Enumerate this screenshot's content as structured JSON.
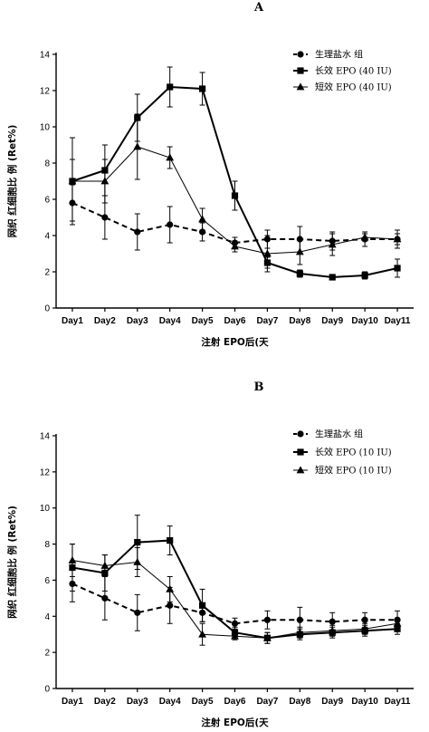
{
  "chart_data": [
    {
      "panel": "A",
      "type": "line",
      "title": "A",
      "xlabel": "注射 EPO后(天",
      "ylabel": "网织 红细胞比 例 (Ret%)",
      "categories": [
        "Day1",
        "Day2",
        "Day3",
        "Day4",
        "Day5",
        "Day6",
        "Day7",
        "Day8",
        "Day9",
        "Day10",
        "Day11"
      ],
      "ylim": [
        0,
        14
      ],
      "yticks": [
        0,
        2,
        4,
        6,
        8,
        10,
        12,
        14
      ],
      "grid": false,
      "legend_position": "top-right",
      "series": [
        {
          "name": "生理盐水 组",
          "marker": "circle",
          "line": "dashed",
          "stroke_width": 2,
          "values": [
            5.8,
            5.0,
            4.2,
            4.6,
            4.2,
            3.6,
            3.8,
            3.8,
            3.7,
            3.8,
            3.8
          ],
          "errors": [
            1.0,
            1.2,
            1.0,
            1.0,
            0.5,
            0.3,
            0.5,
            0.7,
            0.5,
            0.4,
            0.5
          ]
        },
        {
          "name": "长效 EPO (40 IU)",
          "marker": "square",
          "line": "solid",
          "stroke_width": 2,
          "values": [
            7.0,
            7.6,
            10.5,
            12.2,
            12.1,
            6.2,
            2.5,
            1.9,
            1.7,
            1.8,
            2.2
          ],
          "errors": [
            2.4,
            1.4,
            1.3,
            1.1,
            0.9,
            0.8,
            0.3,
            0.2,
            0.15,
            0.2,
            0.5
          ]
        },
        {
          "name": "短效 EPO (40 IU)",
          "marker": "triangle",
          "line": "solid",
          "stroke_width": 1,
          "values": [
            7.0,
            7.0,
            8.9,
            8.3,
            4.9,
            3.4,
            3.0,
            3.1,
            3.5,
            3.9,
            3.8
          ],
          "errors": [
            1.2,
            1.2,
            1.8,
            0.6,
            0.6,
            0.3,
            1.0,
            0.7,
            0.6,
            0.2,
            0.3
          ]
        }
      ]
    },
    {
      "panel": "B",
      "type": "line",
      "title": "B",
      "xlabel": "注射 EPO后(天",
      "ylabel": "网织 红细胞比 例 (Ret%)",
      "categories": [
        "Day1",
        "Day2",
        "Day3",
        "Day4",
        "Day5",
        "Day6",
        "Day7",
        "Day8",
        "Day9",
        "Day10",
        "Day11"
      ],
      "ylim": [
        0,
        14
      ],
      "yticks": [
        0,
        2,
        4,
        6,
        8,
        10,
        12,
        14
      ],
      "grid": false,
      "legend_position": "top-right",
      "series": [
        {
          "name": "生理盐水 组",
          "marker": "circle",
          "line": "dashed",
          "stroke_width": 2,
          "values": [
            5.8,
            5.0,
            4.2,
            4.6,
            4.2,
            3.6,
            3.8,
            3.8,
            3.7,
            3.8,
            3.8
          ],
          "errors": [
            1.0,
            1.2,
            1.0,
            1.0,
            0.5,
            0.3,
            0.5,
            0.7,
            0.5,
            0.4,
            0.5
          ]
        },
        {
          "name": "长效 EPO (10 IU)",
          "marker": "square",
          "line": "solid",
          "stroke_width": 2,
          "values": [
            6.7,
            6.4,
            8.1,
            8.2,
            4.6,
            3.1,
            2.8,
            3.0,
            3.1,
            3.2,
            3.3
          ],
          "errors": [
            1.3,
            1.0,
            1.5,
            0.8,
            0.9,
            0.3,
            0.3,
            0.3,
            0.3,
            0.3,
            0.3
          ]
        },
        {
          "name": "短效 EPO (10 IU)",
          "marker": "triangle",
          "line": "solid",
          "stroke_width": 1,
          "values": [
            7.1,
            6.8,
            7.0,
            5.5,
            3.0,
            2.9,
            2.8,
            3.1,
            3.2,
            3.3,
            3.6
          ],
          "errors": [
            0.9,
            0.6,
            0.8,
            0.7,
            0.6,
            0.2,
            0.3,
            0.3,
            0.3,
            0.3,
            0.3
          ]
        }
      ]
    }
  ]
}
